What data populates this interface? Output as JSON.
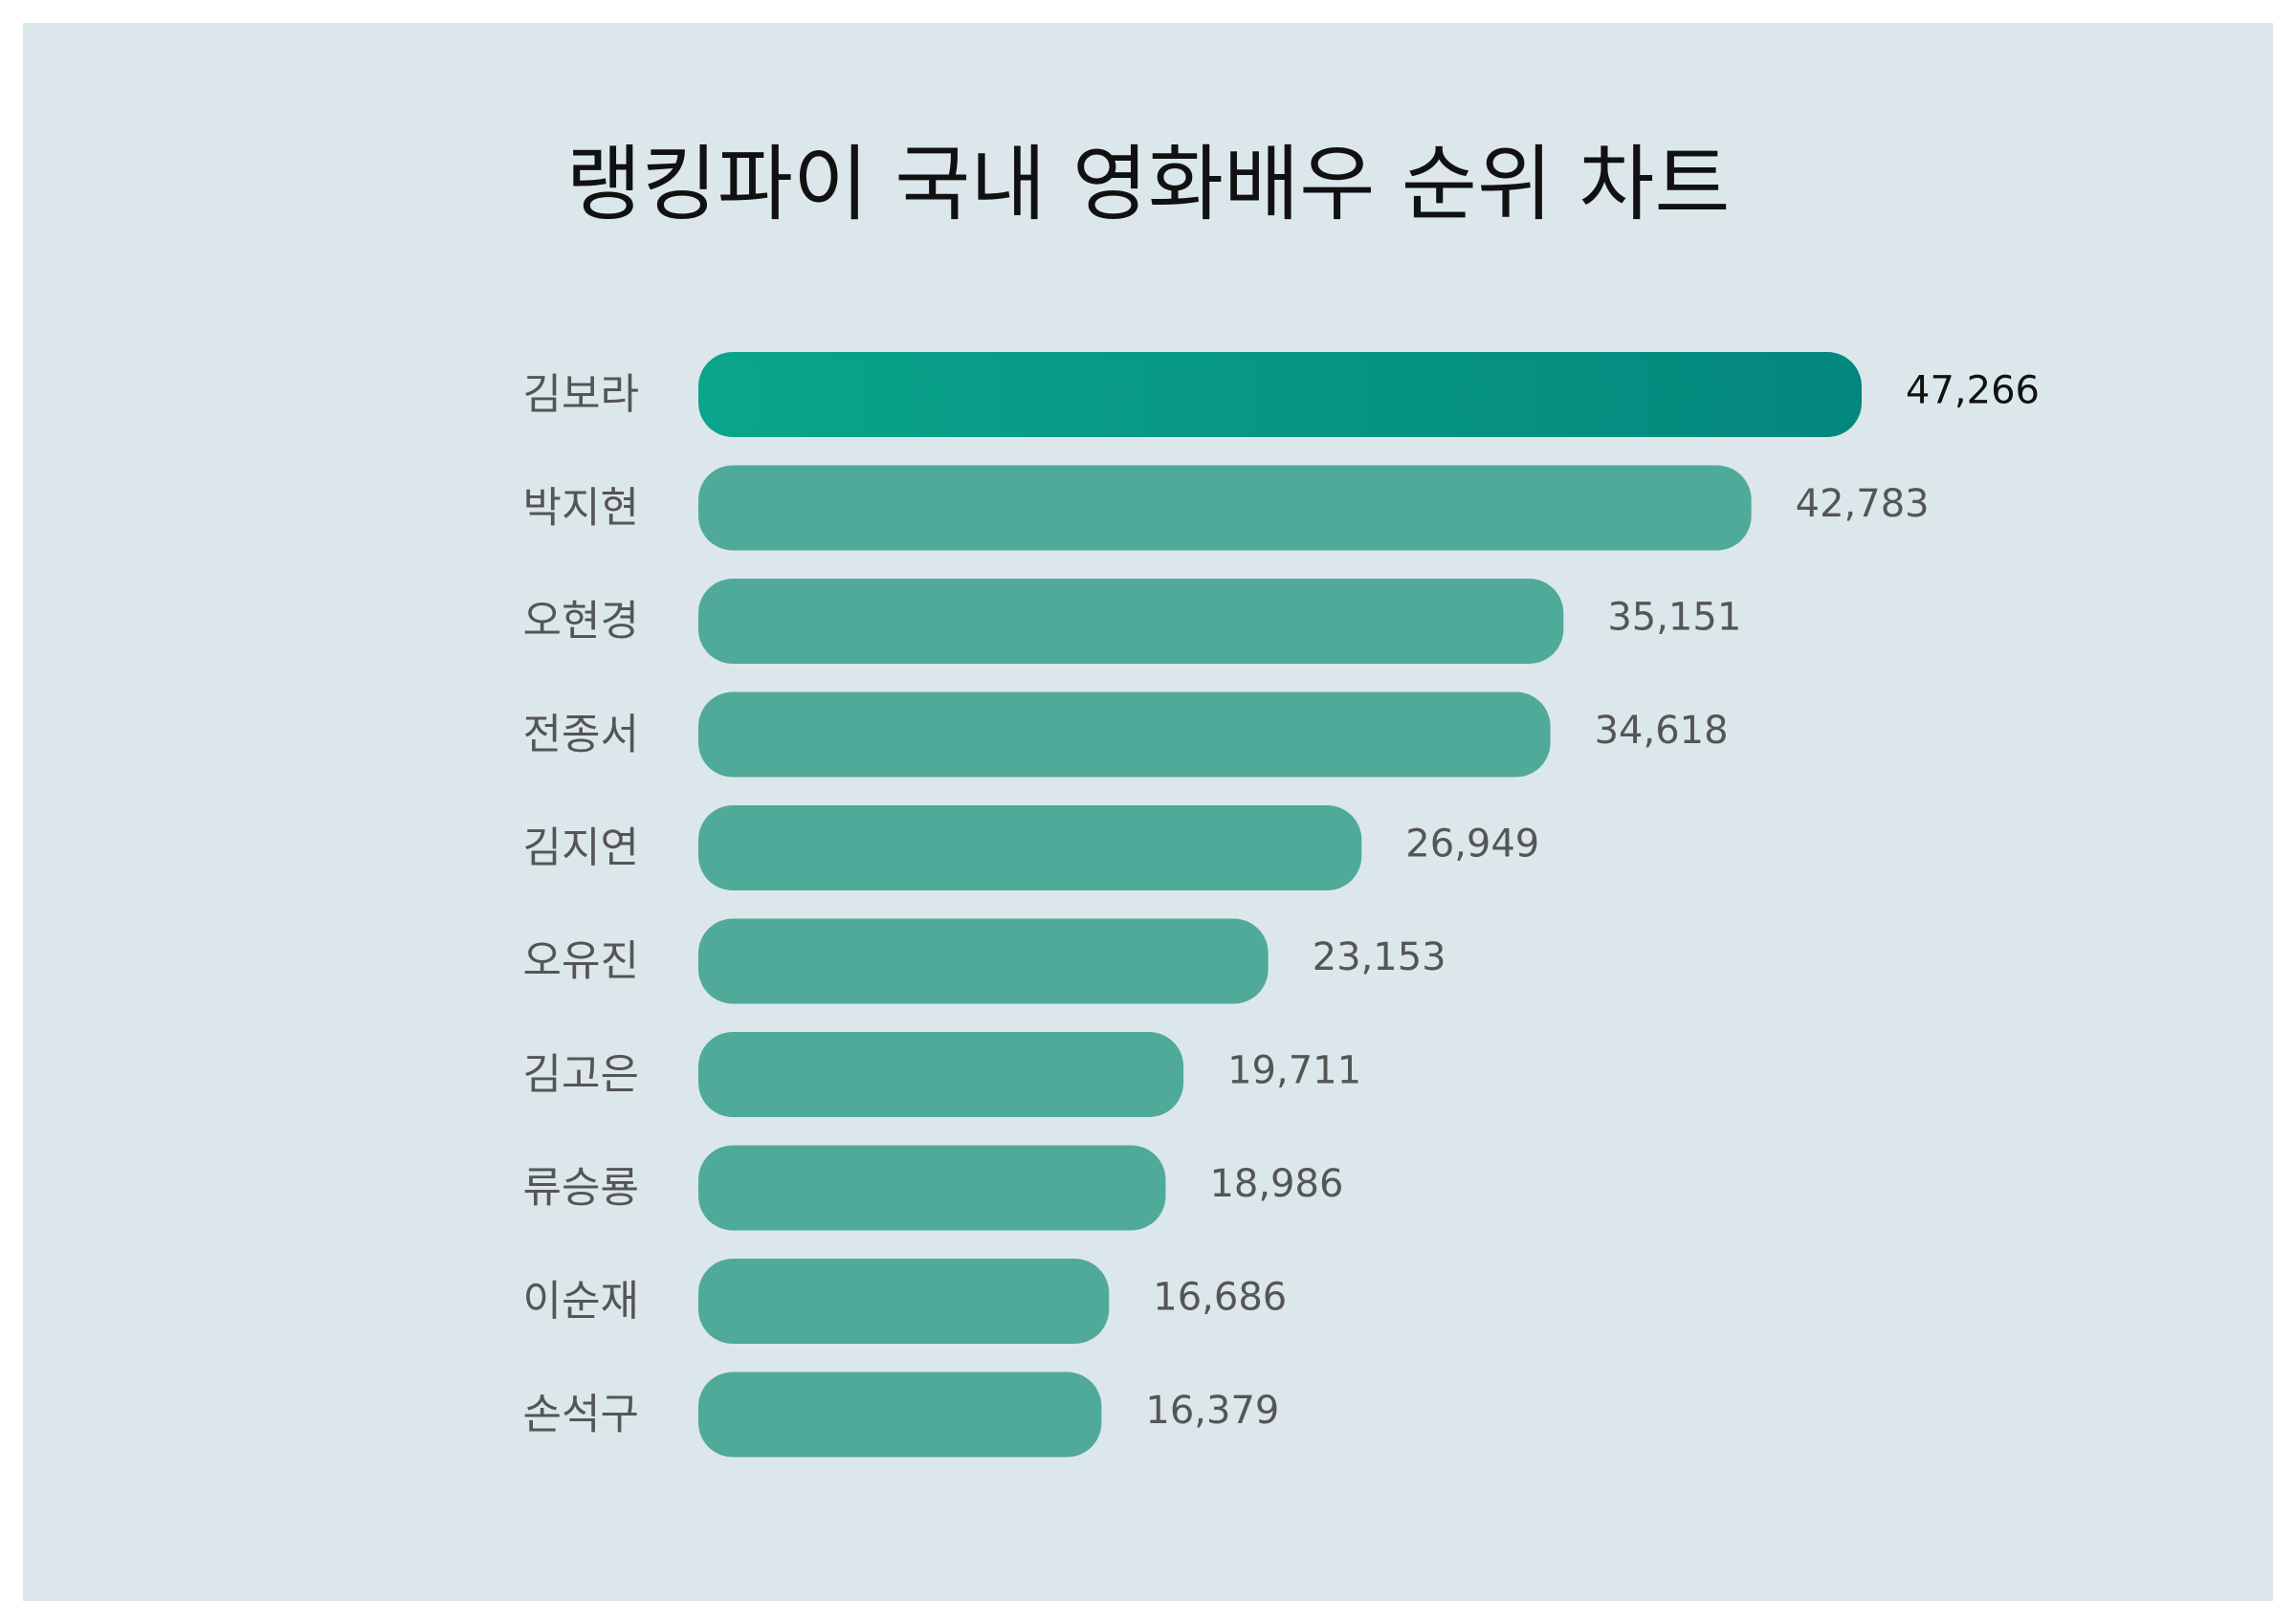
{
  "colors": {
    "background": "#dce7eb",
    "bar": "#50aa99",
    "bar_top_gradient_start": "#0aa58a",
    "bar_top_gradient_end": "#03877d",
    "label_text": "#555555",
    "top_value_text": "#111111"
  },
  "chart_data": {
    "type": "bar",
    "orientation": "horizontal",
    "title": "랭킹파이 국내 영화배우 순위 차트",
    "categories": [
      "김보라",
      "박지현",
      "오현경",
      "전종서",
      "김지연",
      "오유진",
      "김고은",
      "류승룡",
      "이순재",
      "손석구"
    ],
    "values": [
      47266,
      42783,
      35151,
      34618,
      26949,
      23153,
      19711,
      18986,
      16686,
      16379
    ],
    "value_labels": [
      "47,266",
      "42,783",
      "35,151",
      "34,618",
      "26,949",
      "23,153",
      "19,711",
      "18,986",
      "16,686",
      "16,379"
    ],
    "xlim": [
      0,
      47266
    ],
    "grid": false,
    "legend": "none"
  }
}
